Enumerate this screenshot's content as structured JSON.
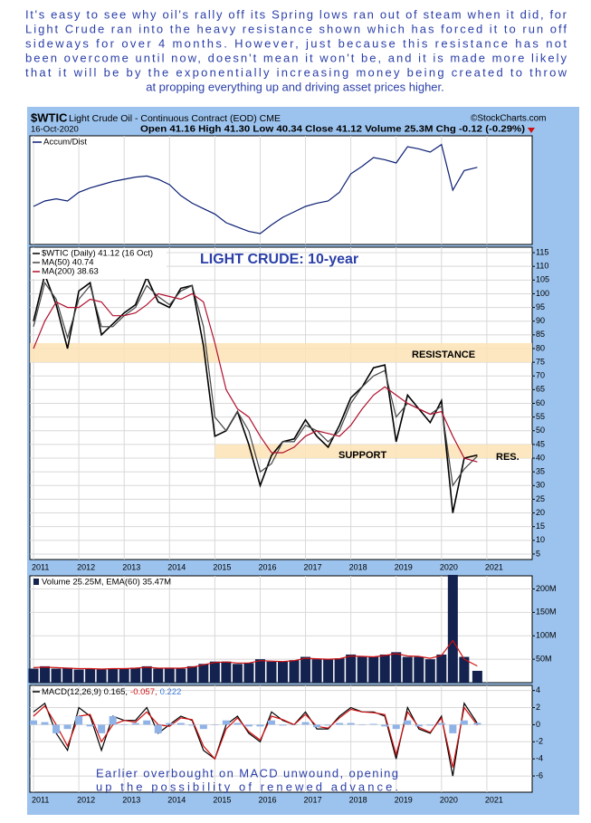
{
  "intro": [
    "It's easy to see why oil's rally off its Spring lows ran out of steam when it did, for",
    "Light Crude ran into the heavy resistance shown which has forced it to run off",
    "sideways for over 4 months. However, just because this resistance has not",
    "been overcome until now, doesn't mean it won't be, and it is made more likely",
    "that it will be by the exponentially increasing money being created to throw",
    "at propping everything up and driving asset prices higher."
  ],
  "header": {
    "symbol": "$WTIC",
    "name": "Light Crude Oil - Continuous Contract (EOD) CME",
    "copyright": "©StockCharts.com",
    "date": "16-Oct-2020",
    "quote": "Open 41.16  High 41.30  Low 40.34  Close 41.12  Volume 25.3M  Chg -0.12 (-0.29%)"
  },
  "chart_data": [
    {
      "type": "line",
      "x": [
        2011,
        2011.25,
        2011.5,
        2011.75,
        2012,
        2012.25,
        2012.5,
        2012.75,
        2013,
        2013.25,
        2013.5,
        2013.75,
        2014,
        2014.25,
        2014.5,
        2014.75,
        2015,
        2015.25,
        2015.5,
        2015.75,
        2016,
        2016.25,
        2016.5,
        2016.75,
        2017,
        2017.25,
        2017.5,
        2017.75,
        2018,
        2018.25,
        2018.5,
        2018.75,
        2019,
        2019.25,
        2019.5,
        2019.75,
        2020,
        2020.25,
        2020.5,
        2020.79
      ],
      "xlim": [
        2010.92,
        2022
      ],
      "xticks": [
        2011,
        2012,
        2013,
        2014,
        2015,
        2016,
        2017,
        2018,
        2019,
        2020,
        2021
      ],
      "show_xtick_labels": false,
      "ylim": [
        0,
        100
      ],
      "yticks": [],
      "series": [
        {
          "name": "Accum/Dist",
          "color": "#0b1f73",
          "type": "line",
          "values": [
            35,
            40,
            42,
            40,
            48,
            52,
            55,
            58,
            60,
            62,
            63,
            60,
            55,
            45,
            38,
            33,
            28,
            20,
            16,
            12,
            10,
            18,
            25,
            30,
            35,
            38,
            40,
            48,
            65,
            72,
            80,
            78,
            75,
            90,
            88,
            85,
            92,
            50,
            68,
            71
          ]
        }
      ]
    },
    {
      "type": "line",
      "title": "LIGHT CRUDE: 10-year",
      "x": [
        2011,
        2011.25,
        2011.5,
        2011.75,
        2012,
        2012.25,
        2012.5,
        2012.75,
        2013,
        2013.25,
        2013.5,
        2013.75,
        2014,
        2014.25,
        2014.5,
        2014.75,
        2015,
        2015.25,
        2015.5,
        2015.75,
        2016,
        2016.25,
        2016.5,
        2016.75,
        2017,
        2017.25,
        2017.5,
        2017.75,
        2018,
        2018.25,
        2018.5,
        2018.75,
        2019,
        2019.25,
        2019.5,
        2019.75,
        2020,
        2020.25,
        2020.5,
        2020.79
      ],
      "xlim": [
        2010.92,
        2022
      ],
      "xticks": [
        2011,
        2012,
        2013,
        2014,
        2015,
        2016,
        2017,
        2018,
        2019,
        2020,
        2021
      ],
      "show_xtick_labels": true,
      "ylim": [
        3,
        117
      ],
      "yticks": [
        5,
        10,
        15,
        20,
        25,
        30,
        35,
        40,
        45,
        50,
        55,
        60,
        65,
        70,
        75,
        80,
        85,
        90,
        95,
        100,
        105,
        110,
        115
      ],
      "bands": [
        {
          "range": [
            75,
            82
          ],
          "color": "#fde3b5"
        },
        {
          "range": [
            40,
            45
          ],
          "start": 2015,
          "color": "#fde3b5"
        }
      ],
      "annotations": [
        "RESISTANCE",
        "SUPPORT",
        "RES."
      ],
      "series": [
        {
          "name": "$WTIC (Daily) 41.12 (16 Oct)",
          "color": "#000000",
          "type": "line",
          "values": [
            90,
            107,
            96,
            80,
            101,
            104,
            85,
            89,
            93,
            96,
            106,
            97,
            95,
            102,
            103,
            81,
            48,
            50,
            57,
            45,
            30,
            41,
            46,
            47,
            54,
            48,
            44,
            52,
            62,
            66,
            73,
            74,
            46,
            63,
            58,
            53,
            61,
            20,
            40,
            41.12
          ]
        },
        {
          "name": "MA(50) 40.74",
          "color": "#444444",
          "type": "line",
          "values": [
            88,
            104,
            98,
            84,
            98,
            103,
            88,
            88,
            92,
            95,
            103,
            99,
            96,
            101,
            103,
            88,
            55,
            50,
            57,
            50,
            35,
            38,
            46,
            46,
            52,
            50,
            46,
            50,
            60,
            66,
            70,
            72,
            55,
            60,
            58,
            56,
            59,
            30,
            36,
            40.74
          ]
        },
        {
          "name": "MA(200) 38.63",
          "color": "#b0102e",
          "type": "line",
          "values": [
            80,
            90,
            97,
            95,
            95,
            98,
            97,
            92,
            92,
            93,
            96,
            100,
            99,
            98,
            100,
            97,
            82,
            65,
            58,
            55,
            48,
            42,
            42,
            44,
            48,
            50,
            49,
            48,
            52,
            58,
            63,
            66,
            63,
            60,
            58,
            56,
            57,
            48,
            40,
            38.63
          ]
        }
      ]
    },
    {
      "type": "bar",
      "label": "Volume 25.25M, EMA(60) 35.47M",
      "x": [
        2011,
        2011.25,
        2011.5,
        2011.75,
        2012,
        2012.25,
        2012.5,
        2012.75,
        2013,
        2013.25,
        2013.5,
        2013.75,
        2014,
        2014.25,
        2014.5,
        2014.75,
        2015,
        2015.25,
        2015.5,
        2015.75,
        2016,
        2016.25,
        2016.5,
        2016.75,
        2017,
        2017.25,
        2017.5,
        2017.75,
        2018,
        2018.25,
        2018.5,
        2018.75,
        2019,
        2019.25,
        2019.5,
        2019.75,
        2020,
        2020.25,
        2020.5,
        2020.79
      ],
      "xlim": [
        2010.92,
        2022
      ],
      "xticks": [
        2011,
        2012,
        2013,
        2014,
        2015,
        2016,
        2017,
        2018,
        2019,
        2020,
        2021
      ],
      "show_xtick_labels": false,
      "ylim": [
        0,
        228000000
      ],
      "yticks": [
        {
          "value": 50000000,
          "label": "50M"
        },
        {
          "value": 100000000,
          "label": "100M"
        },
        {
          "value": 150000000,
          "label": "150M"
        },
        {
          "value": 200000000,
          "label": "200M"
        }
      ],
      "series": [
        {
          "color": "#13224f",
          "type": "bar",
          "values": [
            30000000,
            35000000,
            30000000,
            32000000,
            28000000,
            30000000,
            28000000,
            30000000,
            30000000,
            32000000,
            35000000,
            30000000,
            32000000,
            30000000,
            35000000,
            40000000,
            45000000,
            45000000,
            40000000,
            42000000,
            50000000,
            45000000,
            45000000,
            48000000,
            55000000,
            50000000,
            50000000,
            52000000,
            60000000,
            55000000,
            55000000,
            60000000,
            65000000,
            55000000,
            55000000,
            50000000,
            60000000,
            230000000,
            55000000,
            25250000
          ]
        },
        {
          "color": "#d01010",
          "type": "line",
          "values": [
            32000000,
            33000000,
            32000000,
            31000000,
            30000000,
            30000000,
            29000000,
            30000000,
            30000000,
            31000000,
            33000000,
            31000000,
            31000000,
            31000000,
            33000000,
            38000000,
            43000000,
            44000000,
            42000000,
            42000000,
            47000000,
            46000000,
            45000000,
            47000000,
            52000000,
            51000000,
            50000000,
            51000000,
            57000000,
            56000000,
            55000000,
            58000000,
            62000000,
            57000000,
            56000000,
            52000000,
            58000000,
            90000000,
            50000000,
            35470000
          ]
        }
      ]
    },
    {
      "type": "line",
      "x": [
        2011,
        2011.25,
        2011.5,
        2011.75,
        2012,
        2012.25,
        2012.5,
        2012.75,
        2013,
        2013.25,
        2013.5,
        2013.75,
        2014,
        2014.25,
        2014.5,
        2014.75,
        2015,
        2015.25,
        2015.5,
        2015.75,
        2016,
        2016.25,
        2016.5,
        2016.75,
        2017,
        2017.25,
        2017.5,
        2017.75,
        2018,
        2018.25,
        2018.5,
        2018.75,
        2019,
        2019.25,
        2019.5,
        2019.75,
        2020,
        2020.25,
        2020.5,
        2020.79
      ],
      "xlim": [
        2010.92,
        2022
      ],
      "xticks": [
        2011,
        2012,
        2013,
        2014,
        2015,
        2016,
        2017,
        2018,
        2019,
        2020,
        2021
      ],
      "show_xtick_labels": true,
      "ylim": [
        -7.9,
        4.6
      ],
      "yticks": [
        -6,
        -4,
        -2,
        0,
        2,
        4
      ],
      "note": [
        "Earlier overbought on MACD unwound, opening",
        "up the possibility of renewed advance."
      ],
      "series": [
        {
          "name": "MACD(12,26,9) 0.165,",
          "color": "#000000",
          "type": "line",
          "values": [
            1.5,
            2.5,
            -1,
            -3,
            2,
            1,
            -3,
            1,
            0.5,
            0.5,
            2,
            -1,
            0,
            1,
            0.5,
            -3,
            -4,
            0,
            1,
            -1,
            -2,
            1.5,
            0.5,
            0,
            1.5,
            -0.5,
            -0.5,
            1,
            2,
            1.5,
            1.5,
            1,
            -4,
            2,
            -0.5,
            -1,
            1,
            -6,
            2.5,
            0.165
          ]
        },
        {
          "name": "-0.057,",
          "color": "#d01010",
          "type": "line",
          "values": [
            1,
            2.2,
            0,
            -2.5,
            1,
            1.2,
            -2,
            0,
            0.5,
            0.3,
            1.5,
            0,
            -0.2,
            0.8,
            0.6,
            -2.5,
            -4,
            -0.5,
            0.8,
            -0.8,
            -1.8,
            1,
            0.6,
            0,
            1.2,
            -0.2,
            -0.4,
            0.8,
            1.8,
            1.5,
            1.4,
            1.2,
            -3.5,
            1.5,
            -0.3,
            -0.9,
            0.8,
            -5,
            2,
            -0.057
          ]
        },
        {
          "name": "0.222",
          "color": "#8fb3e6",
          "type": "bar",
          "values": [
            0.5,
            0.3,
            -1,
            -0.5,
            1,
            -0.2,
            -1,
            1,
            0,
            0.2,
            0.5,
            -1,
            0.2,
            0.2,
            -0.1,
            -0.5,
            0,
            0.5,
            0.2,
            -0.2,
            -0.2,
            0.5,
            -0.1,
            0,
            0.3,
            -0.3,
            -0.1,
            0.2,
            0.2,
            0,
            0.1,
            -0.2,
            -0.5,
            0.5,
            -0.2,
            -0.1,
            0.2,
            -1,
            0.5,
            0.222
          ]
        }
      ]
    }
  ]
}
